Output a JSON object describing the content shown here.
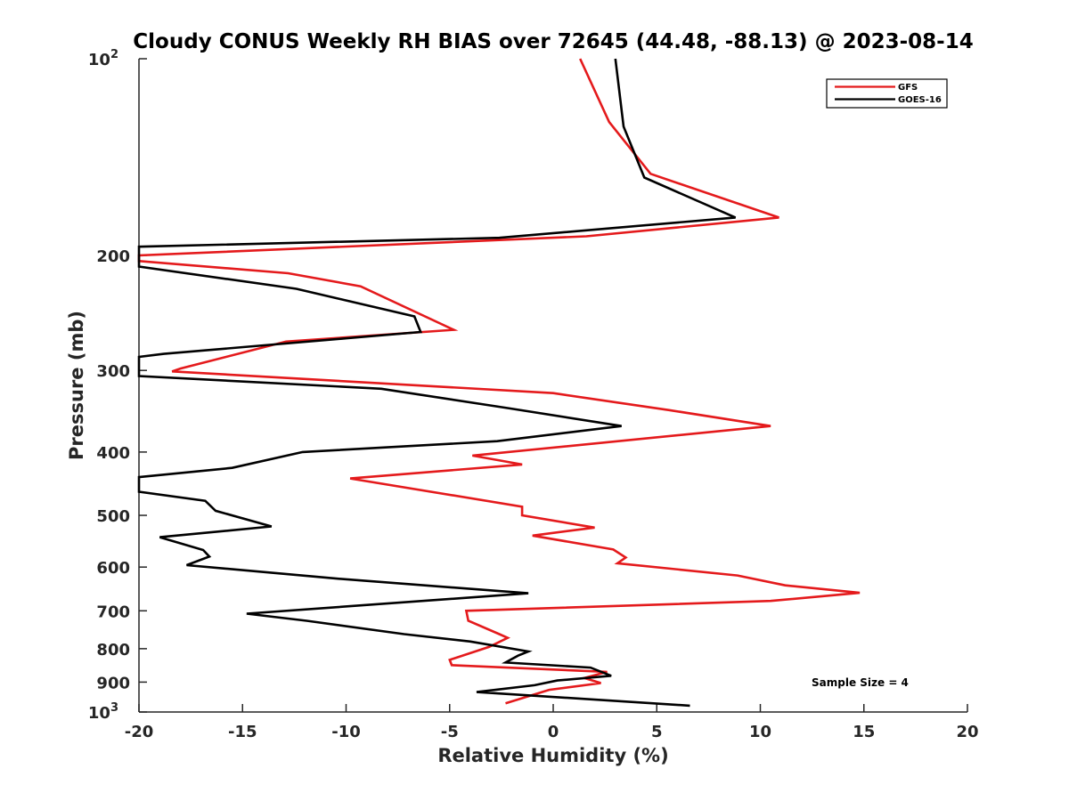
{
  "chart_data": {
    "type": "line",
    "title": "Cloudy CONUS Weekly RH BIAS over 72645 (44.48, -88.13) @ 2023-08-14",
    "xlabel": "Relative Humidity (%)",
    "ylabel": "Pressure (mb)",
    "xlim": [
      -20,
      20
    ],
    "ylim": [
      100,
      1000
    ],
    "y_scale": "log",
    "y_reversed": true,
    "x_ticks": [
      "-20",
      "-15",
      "-10",
      "-5",
      "0",
      "5",
      "10",
      "15",
      "20"
    ],
    "y_ticks": [
      {
        "value": 100,
        "base": "10",
        "exp": "2"
      },
      {
        "value": 200,
        "label": "200"
      },
      {
        "value": 300,
        "label": "300"
      },
      {
        "value": 400,
        "label": "400"
      },
      {
        "value": 500,
        "label": "500"
      },
      {
        "value": 600,
        "label": "600"
      },
      {
        "value": 700,
        "label": "700"
      },
      {
        "value": 800,
        "label": "800"
      },
      {
        "value": 900,
        "label": "900"
      },
      {
        "value": 1000,
        "base": "10",
        "exp": "3"
      }
    ],
    "grid": false,
    "legend_position": "top-right",
    "annotation": "Sample Size = 4",
    "series": [
      {
        "name": "GFS",
        "color": "#e41a1c",
        "points": [
          [
            1.3,
            100
          ],
          [
            2.7,
            125
          ],
          [
            4.7,
            150
          ],
          [
            10.9,
            175
          ],
          [
            1.6,
            187
          ],
          [
            -20,
            200
          ],
          [
            -20,
            204
          ],
          [
            -12.8,
            213
          ],
          [
            -9.3,
            223
          ],
          [
            -4.8,
            260
          ],
          [
            -12.9,
            271
          ],
          [
            -18.0,
            298
          ],
          [
            -18.4,
            301
          ],
          [
            0,
            325
          ],
          [
            5.6,
            345
          ],
          [
            10.5,
            365
          ],
          [
            -3.9,
            405
          ],
          [
            -1.5,
            418
          ],
          [
            -9.8,
            439
          ],
          [
            -1.5,
            485
          ],
          [
            -1.5,
            500
          ],
          [
            2.0,
            522
          ],
          [
            -1.0,
            537
          ],
          [
            2.9,
            564
          ],
          [
            3.5,
            580
          ],
          [
            3.1,
            592
          ],
          [
            8.9,
            618
          ],
          [
            11.2,
            640
          ],
          [
            14.8,
            657
          ],
          [
            10.5,
            676
          ],
          [
            -4.2,
            700
          ],
          [
            -4.1,
            725
          ],
          [
            -2.6,
            760
          ],
          [
            -2.2,
            770
          ],
          [
            -3.1,
            795
          ],
          [
            -5.0,
            832
          ],
          [
            -4.9,
            848
          ],
          [
            2.6,
            868
          ],
          [
            1.5,
            887
          ],
          [
            2.3,
            903
          ],
          [
            -0.2,
            925
          ],
          [
            -2.3,
            970
          ]
        ]
      },
      {
        "name": "GOES-16",
        "color": "#000000",
        "points": [
          [
            3.0,
            100
          ],
          [
            3.4,
            127
          ],
          [
            4.4,
            152
          ],
          [
            8.8,
            175
          ],
          [
            -2.6,
            188
          ],
          [
            -20,
            194
          ],
          [
            -20,
            208
          ],
          [
            -12.4,
            225
          ],
          [
            -6.7,
            248
          ],
          [
            -6.4,
            262
          ],
          [
            -18.8,
            283
          ],
          [
            -20,
            286
          ],
          [
            -20,
            306
          ],
          [
            -8.3,
            320
          ],
          [
            -2.1,
            343
          ],
          [
            3.3,
            365
          ],
          [
            -2.7,
            385
          ],
          [
            -12.1,
            400
          ],
          [
            -15.5,
            423
          ],
          [
            -20,
            437
          ],
          [
            -20,
            460
          ],
          [
            -16.8,
            475
          ],
          [
            -16.3,
            492
          ],
          [
            -13.6,
            520
          ],
          [
            -19.0,
            540
          ],
          [
            -16.9,
            565
          ],
          [
            -16.6,
            578
          ],
          [
            -17.7,
            596
          ],
          [
            -10.4,
            625
          ],
          [
            -1.2,
            658
          ],
          [
            -14.8,
            707
          ],
          [
            -11.9,
            725
          ],
          [
            -7.2,
            760
          ],
          [
            -4.0,
            780
          ],
          [
            -1.2,
            808
          ],
          [
            -1.7,
            820
          ],
          [
            -2.3,
            840
          ],
          [
            1.8,
            855
          ],
          [
            2.8,
            880
          ],
          [
            0.2,
            895
          ],
          [
            -0.9,
            910
          ],
          [
            -3.7,
            932
          ],
          [
            6.6,
            978
          ]
        ]
      }
    ]
  }
}
